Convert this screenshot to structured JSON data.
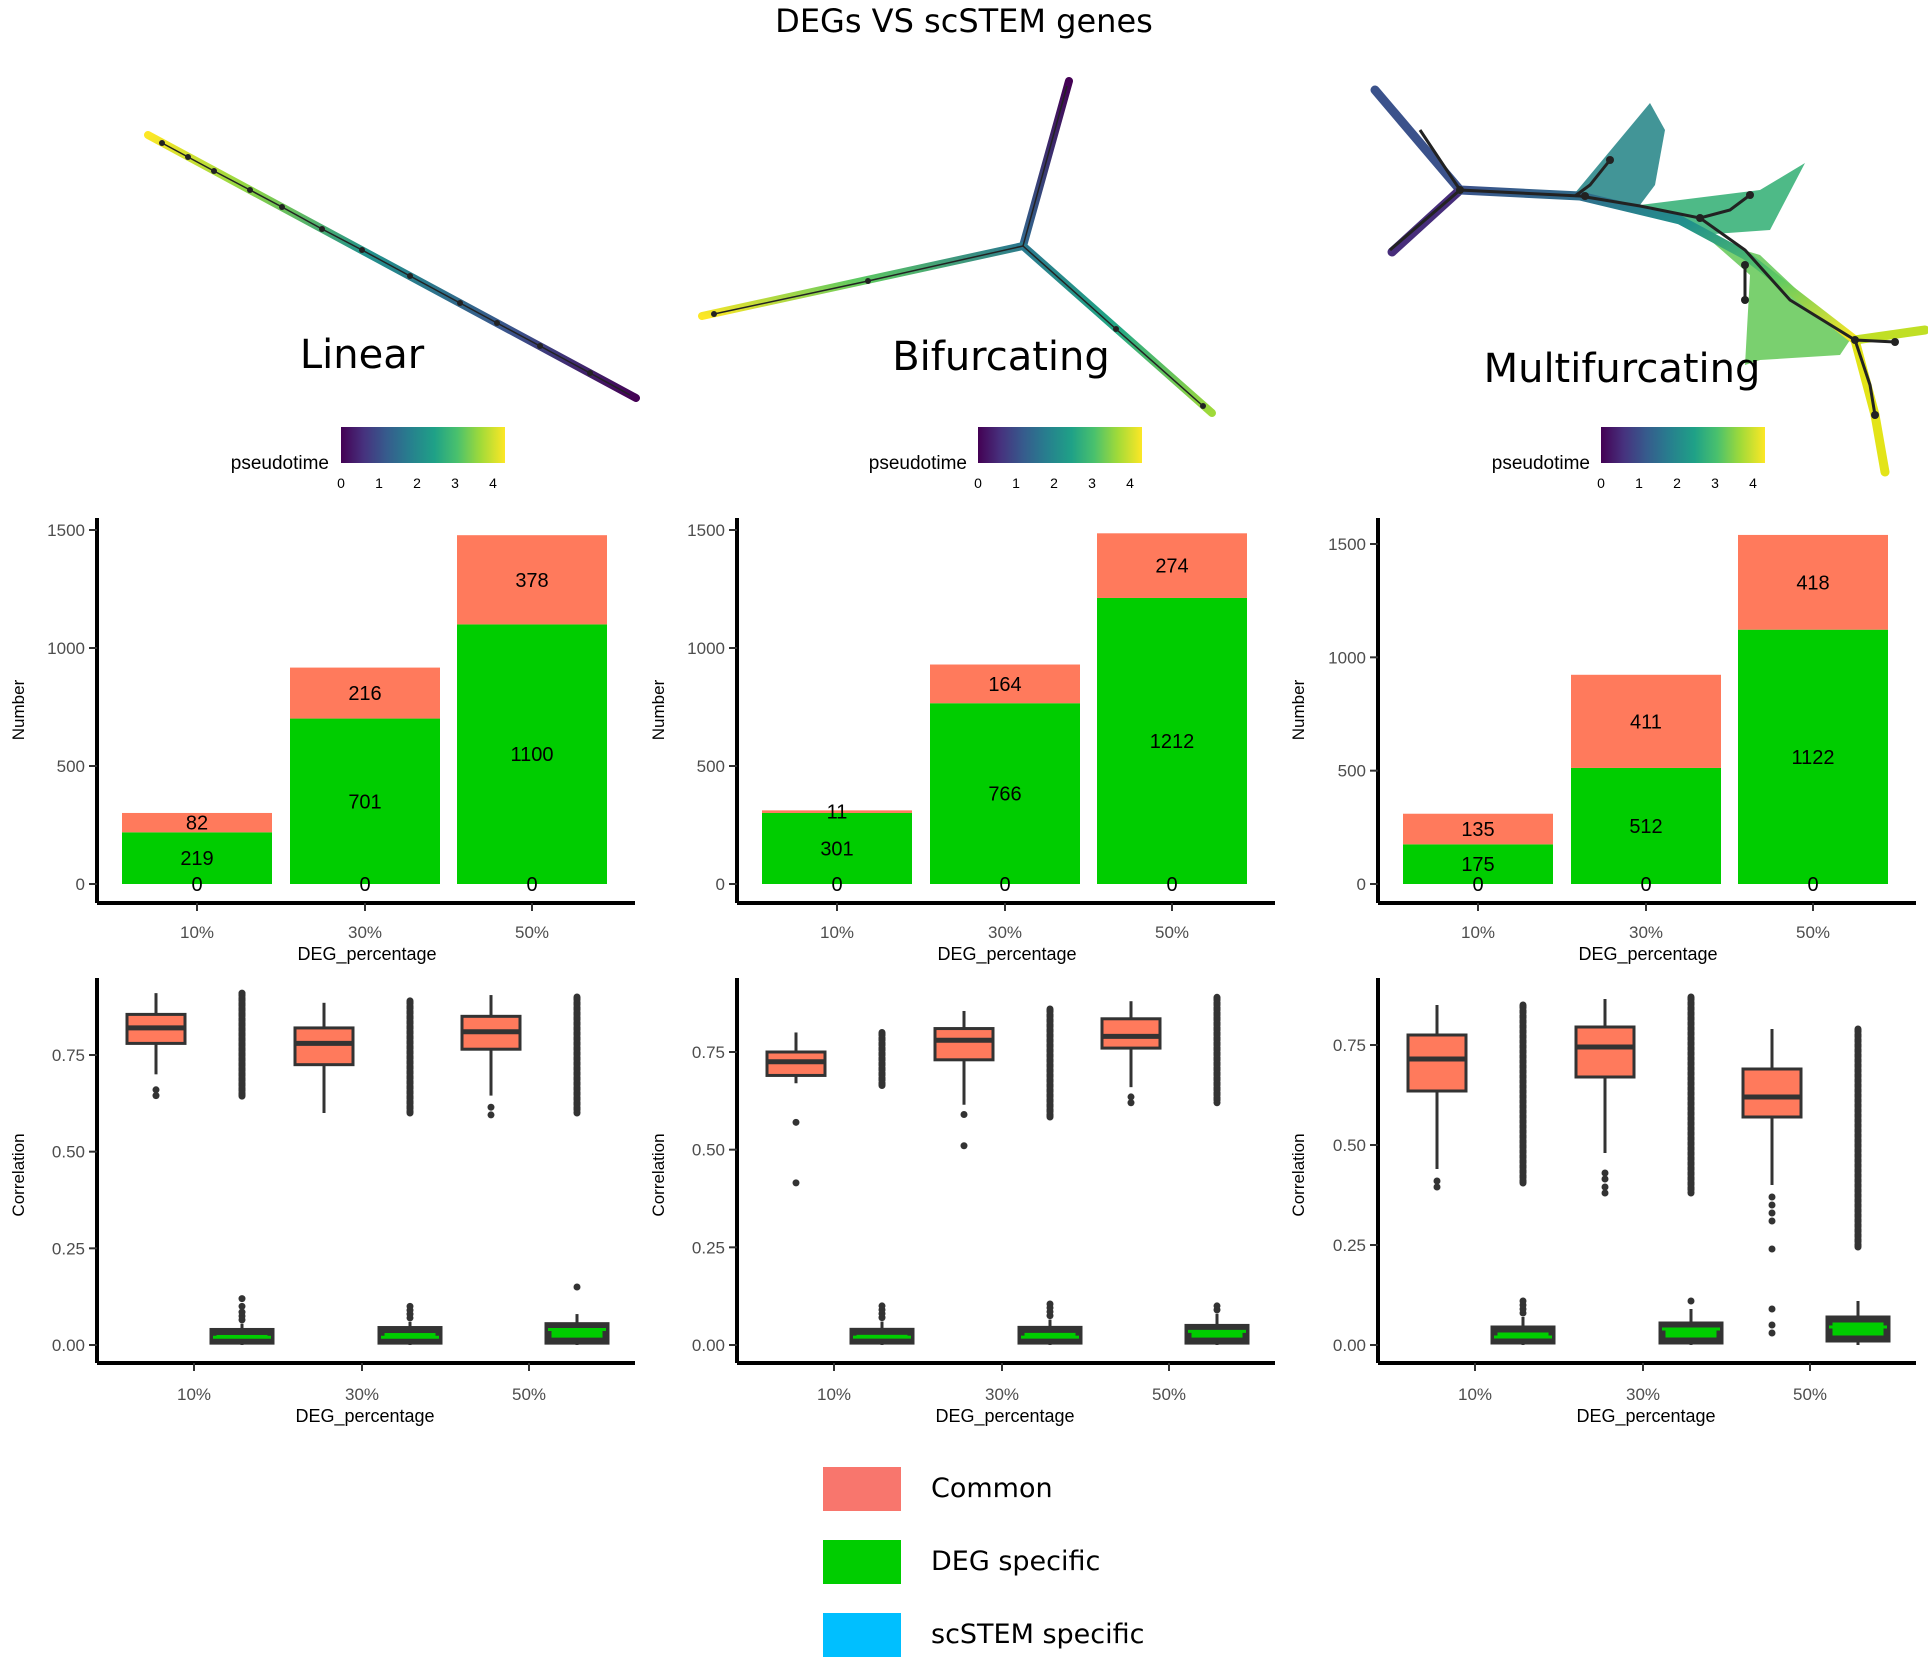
{
  "figure": {
    "title": "DEGs VS scSTEM genes",
    "colorbar": {
      "label": "pseudotime",
      "ticks": [
        "0",
        "1",
        "2",
        "3",
        "4"
      ],
      "colormap": "viridis"
    }
  },
  "legend": {
    "items": [
      {
        "label": "Common",
        "color": "#F8766D"
      },
      {
        "label": "DEG specific",
        "color": "#00CD00"
      },
      {
        "label": "scSTEM specific",
        "color": "#00BFFF"
      }
    ]
  },
  "colors": {
    "common": "#FF7A5C",
    "deg_specific": "#00CD00",
    "box_outline": "#333333"
  },
  "chart_data": [
    {
      "type": "trajectory",
      "panel": "Linear",
      "title": "Linear",
      "colorbar_label": "pseudotime",
      "colorbar_range": [
        0,
        4.3
      ]
    },
    {
      "type": "trajectory",
      "panel": "Bifurcating",
      "title": "Bifurcating",
      "colorbar_label": "pseudotime",
      "colorbar_range": [
        0,
        4.3
      ]
    },
    {
      "type": "trajectory",
      "panel": "Multifurcating",
      "title": "Multifurcating",
      "colorbar_label": "pseudotime",
      "colorbar_range": [
        0,
        4.3
      ]
    },
    {
      "type": "bar",
      "panel": "Linear",
      "stacked": true,
      "xlabel": "DEG_percentage",
      "ylabel": "Number",
      "categories": [
        "10%",
        "30%",
        "50%"
      ],
      "ylim": [
        0,
        1500
      ],
      "yticks": [
        0,
        500,
        1000,
        1500
      ],
      "series": [
        {
          "name": "DEG specific",
          "values": [
            219,
            701,
            1100
          ]
        },
        {
          "name": "Common",
          "values": [
            82,
            216,
            378
          ]
        },
        {
          "name": "scSTEM specific",
          "values": [
            0,
            0,
            0
          ]
        }
      ]
    },
    {
      "type": "bar",
      "panel": "Bifurcating",
      "stacked": true,
      "xlabel": "DEG_percentage",
      "ylabel": "Number",
      "categories": [
        "10%",
        "30%",
        "50%"
      ],
      "ylim": [
        0,
        1500
      ],
      "yticks": [
        0,
        500,
        1000,
        1500
      ],
      "series": [
        {
          "name": "DEG specific",
          "values": [
            301,
            766,
            1212
          ]
        },
        {
          "name": "Common",
          "values": [
            11,
            164,
            274
          ]
        },
        {
          "name": "scSTEM specific",
          "values": [
            0,
            0,
            0
          ]
        }
      ]
    },
    {
      "type": "bar",
      "panel": "Multifurcating",
      "stacked": true,
      "xlabel": "DEG_percentage",
      "ylabel": "Number",
      "categories": [
        "10%",
        "30%",
        "50%"
      ],
      "ylim": [
        0,
        1540
      ],
      "yticks": [
        0,
        500,
        1000,
        1500
      ],
      "series": [
        {
          "name": "DEG specific",
          "values": [
            175,
            512,
            1122
          ]
        },
        {
          "name": "Common",
          "values": [
            135,
            411,
            418
          ]
        },
        {
          "name": "scSTEM specific",
          "values": [
            0,
            0,
            0
          ]
        }
      ]
    },
    {
      "type": "box",
      "panel": "Linear",
      "xlabel": "DEG_percentage",
      "ylabel": "Correlation",
      "categories": [
        "10%",
        "30%",
        "50%"
      ],
      "ylim": [
        0,
        0.93
      ],
      "yticks": [
        "0.00",
        "0.25",
        "0.50",
        "0.75"
      ],
      "series": [
        {
          "name": "Common",
          "boxes": [
            {
              "q1": 0.78,
              "median": 0.82,
              "q3": 0.855,
              "lo": 0.7,
              "hi": 0.91,
              "outliers": [
                0.66,
                0.645
              ]
            },
            {
              "q1": 0.725,
              "median": 0.78,
              "q3": 0.82,
              "lo": 0.6,
              "hi": 0.885,
              "outliers": []
            },
            {
              "q1": 0.765,
              "median": 0.81,
              "q3": 0.85,
              "lo": 0.645,
              "hi": 0.905,
              "outliers": [
                0.615,
                0.595
              ]
            }
          ]
        },
        {
          "name": "DEG specific",
          "boxes": [
            {
              "q1": 0.01,
              "median": 0.02,
              "q3": 0.035,
              "lo": 0.0,
              "hi": 0.055,
              "outliers": [
                0.065,
                0.075,
                0.085,
                0.1,
                0.12
              ]
            },
            {
              "q1": 0.01,
              "median": 0.02,
              "q3": 0.04,
              "lo": 0.0,
              "hi": 0.06,
              "outliers": [
                0.07,
                0.08,
                0.09,
                0.1
              ]
            },
            {
              "q1": 0.01,
              "median": 0.04,
              "q3": 0.05,
              "lo": 0.0,
              "hi": 0.08,
              "outliers": [
                0.15
              ]
            }
          ]
        }
      ],
      "dense_outliers": [
        {
          "group": 0,
          "from": 0.64,
          "to": 0.91
        },
        {
          "group": 1,
          "from": 0.6,
          "to": 0.89
        },
        {
          "group": 2,
          "from": 0.6,
          "to": 0.9
        }
      ]
    },
    {
      "type": "box",
      "panel": "Bifurcating",
      "xlabel": "DEG_percentage",
      "ylabel": "Correlation",
      "categories": [
        "10%",
        "30%",
        "50%"
      ],
      "ylim": [
        0,
        0.88
      ],
      "yticks": [
        "0.00",
        "0.25",
        "0.50",
        "0.75"
      ],
      "series": [
        {
          "name": "Common",
          "boxes": [
            {
              "q1": 0.69,
              "median": 0.725,
              "q3": 0.75,
              "lo": 0.67,
              "hi": 0.8,
              "outliers": [
                0.57,
                0.415
              ]
            },
            {
              "q1": 0.73,
              "median": 0.78,
              "q3": 0.81,
              "lo": 0.615,
              "hi": 0.855,
              "outliers": [
                0.59,
                0.51
              ]
            },
            {
              "q1": 0.76,
              "median": 0.79,
              "q3": 0.835,
              "lo": 0.66,
              "hi": 0.88,
              "outliers": [
                0.635,
                0.62
              ]
            }
          ]
        },
        {
          "name": "DEG specific",
          "boxes": [
            {
              "q1": 0.01,
              "median": 0.02,
              "q3": 0.035,
              "lo": 0.0,
              "hi": 0.06,
              "outliers": [
                0.07,
                0.08,
                0.09,
                0.1
              ]
            },
            {
              "q1": 0.01,
              "median": 0.02,
              "q3": 0.04,
              "lo": 0.0,
              "hi": 0.065,
              "outliers": [
                0.075,
                0.085,
                0.095,
                0.105
              ]
            },
            {
              "q1": 0.01,
              "median": 0.035,
              "q3": 0.045,
              "lo": 0.0,
              "hi": 0.08,
              "outliers": [
                0.09,
                0.1
              ]
            }
          ]
        }
      ],
      "dense_outliers": [
        {
          "group": 0,
          "from": 0.66,
          "to": 0.8
        },
        {
          "group": 1,
          "from": 0.58,
          "to": 0.86
        },
        {
          "group": 2,
          "from": 0.62,
          "to": 0.89
        }
      ]
    },
    {
      "type": "box",
      "panel": "Multifurcating",
      "xlabel": "DEG_percentage",
      "ylabel": "Correlation",
      "categories": [
        "10%",
        "30%",
        "50%"
      ],
      "ylim": [
        0,
        0.87
      ],
      "yticks": [
        "0.00",
        "0.25",
        "0.50",
        "0.75"
      ],
      "series": [
        {
          "name": "Common",
          "boxes": [
            {
              "q1": 0.635,
              "median": 0.715,
              "q3": 0.775,
              "lo": 0.44,
              "hi": 0.85,
              "outliers": [
                0.41,
                0.395
              ]
            },
            {
              "q1": 0.67,
              "median": 0.745,
              "q3": 0.795,
              "lo": 0.48,
              "hi": 0.865,
              "outliers": [
                0.43,
                0.415,
                0.395,
                0.38
              ]
            },
            {
              "q1": 0.57,
              "median": 0.62,
              "q3": 0.69,
              "lo": 0.4,
              "hi": 0.79,
              "outliers": [
                0.37,
                0.35,
                0.33,
                0.31,
                0.24,
                0.09,
                0.05,
                0.03
              ]
            }
          ]
        },
        {
          "name": "DEG specific",
          "boxes": [
            {
              "q1": 0.01,
              "median": 0.02,
              "q3": 0.04,
              "lo": 0.0,
              "hi": 0.07,
              "outliers": [
                0.08,
                0.09,
                0.1,
                0.11
              ]
            },
            {
              "q1": 0.01,
              "median": 0.04,
              "q3": 0.05,
              "lo": 0.0,
              "hi": 0.09,
              "outliers": [
                0.11
              ]
            },
            {
              "q1": 0.015,
              "median": 0.045,
              "q3": 0.065,
              "lo": 0.0,
              "hi": 0.11,
              "outliers": []
            }
          ]
        }
      ],
      "dense_outliers": [
        {
          "group": 0,
          "from": 0.4,
          "to": 0.85
        },
        {
          "group": 1,
          "from": 0.38,
          "to": 0.87
        },
        {
          "group": 2,
          "from": 0.24,
          "to": 0.79
        }
      ]
    }
  ]
}
